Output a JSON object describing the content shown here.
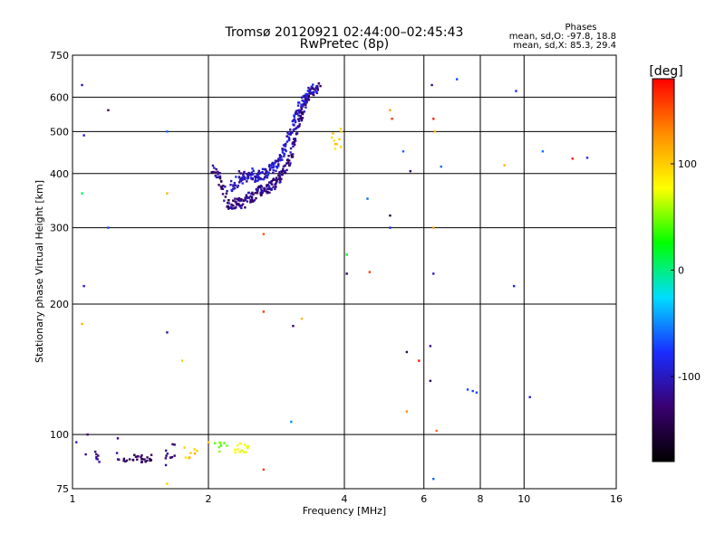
{
  "chart_data": {
    "type": "scatter",
    "title": "Tromsø 20120921 02:44:00–02:45:43",
    "subtitle": "RwPretec (8p)",
    "xlabel": "Frequency [MHz]",
    "ylabel": "Stationary phase Virtual Height [km]",
    "xscale": "log2",
    "yscale": "log",
    "xlim": [
      1,
      16
    ],
    "ylim": [
      75,
      750
    ],
    "xticks": [
      1,
      2,
      4,
      6,
      8,
      10,
      16
    ],
    "xtick_labels": [
      "1",
      "2",
      "4",
      "6",
      "8",
      "10",
      "16"
    ],
    "yticks": [
      75,
      100,
      200,
      300,
      400,
      500,
      600,
      750
    ],
    "ytick_labels": [
      "75",
      "100",
      "200",
      "300",
      "400",
      "500",
      "600",
      "750"
    ],
    "grid": true,
    "phases": {
      "title": "Phases",
      "line_o": "mean, sd,O: -97.8, 18.8",
      "line_x": "mean, sd,X:  85.3, 29.4"
    },
    "colorbar": {
      "label": "[deg]",
      "range": [
        -180,
        180
      ],
      "ticks": [
        100,
        0,
        -100
      ],
      "tick_labels": [
        "100",
        "0",
        "-100"
      ],
      "colors": [
        "#000000",
        "#3a0070",
        "#1a2cff",
        "#00ddff",
        "#00ff00",
        "#ffff00",
        "#ff8c00",
        "#ff0000"
      ]
    },
    "scattered_points": [
      {
        "f": 1.05,
        "h": 640,
        "p": -110
      },
      {
        "f": 1.06,
        "h": 490,
        "p": -100
      },
      {
        "f": 1.2,
        "h": 560,
        "p": -130
      },
      {
        "f": 1.62,
        "h": 500,
        "p": -60
      },
      {
        "f": 1.05,
        "h": 360,
        "p": 10
      },
      {
        "f": 1.62,
        "h": 360,
        "p": 110
      },
      {
        "f": 1.2,
        "h": 300,
        "p": -70
      },
      {
        "f": 1.06,
        "h": 220,
        "p": -100
      },
      {
        "f": 1.05,
        "h": 180,
        "p": 110
      },
      {
        "f": 1.62,
        "h": 172,
        "p": -110
      },
      {
        "f": 1.75,
        "h": 148,
        "p": 100
      },
      {
        "f": 2.65,
        "h": 290,
        "p": 150
      },
      {
        "f": 2.65,
        "h": 192,
        "p": 160
      },
      {
        "f": 3.08,
        "h": 178,
        "p": -130
      },
      {
        "f": 3.22,
        "h": 185,
        "p": 110
      },
      {
        "f": 3.05,
        "h": 107,
        "p": -50
      },
      {
        "f": 2.65,
        "h": 83,
        "p": 160
      },
      {
        "f": 4.05,
        "h": 260,
        "p": 20
      },
      {
        "f": 4.05,
        "h": 235,
        "p": -140
      },
      {
        "f": 4.5,
        "h": 350,
        "p": -60
      },
      {
        "f": 4.55,
        "h": 237,
        "p": 160
      },
      {
        "f": 5.05,
        "h": 560,
        "p": 120
      },
      {
        "f": 5.1,
        "h": 535,
        "p": 160
      },
      {
        "f": 5.4,
        "h": 450,
        "p": -60
      },
      {
        "f": 5.6,
        "h": 405,
        "p": -130
      },
      {
        "f": 5.05,
        "h": 320,
        "p": -150
      },
      {
        "f": 5.05,
        "h": 300,
        "p": -80
      },
      {
        "f": 5.5,
        "h": 155,
        "p": -140
      },
      {
        "f": 5.85,
        "h": 148,
        "p": 170
      },
      {
        "f": 5.5,
        "h": 113,
        "p": 130
      },
      {
        "f": 6.25,
        "h": 640,
        "p": -120
      },
      {
        "f": 6.3,
        "h": 535,
        "p": 170
      },
      {
        "f": 6.35,
        "h": 500,
        "p": 110
      },
      {
        "f": 6.55,
        "h": 415,
        "p": -60
      },
      {
        "f": 6.3,
        "h": 300,
        "p": 120
      },
      {
        "f": 6.3,
        "h": 235,
        "p": -100
      },
      {
        "f": 6.2,
        "h": 160,
        "p": -120
      },
      {
        "f": 6.2,
        "h": 133,
        "p": -140
      },
      {
        "f": 6.4,
        "h": 102,
        "p": 140
      },
      {
        "f": 6.3,
        "h": 79,
        "p": -60
      },
      {
        "f": 7.1,
        "h": 660,
        "p": -70
      },
      {
        "f": 7.5,
        "h": 127,
        "p": -70
      },
      {
        "f": 7.7,
        "h": 126,
        "p": -70
      },
      {
        "f": 7.85,
        "h": 125,
        "p": -70
      },
      {
        "f": 9.05,
        "h": 418,
        "p": 110
      },
      {
        "f": 9.6,
        "h": 620,
        "p": -80
      },
      {
        "f": 9.5,
        "h": 220,
        "p": -90
      },
      {
        "f": 10.3,
        "h": 122,
        "p": -90
      },
      {
        "f": 11.0,
        "h": 450,
        "p": -60
      },
      {
        "f": 12.8,
        "h": 433,
        "p": 170
      },
      {
        "f": 13.8,
        "h": 435,
        "p": -80
      },
      {
        "f": 1.02,
        "h": 96,
        "p": -100
      },
      {
        "f": 1.08,
        "h": 100,
        "p": -130
      },
      {
        "f": 1.07,
        "h": 90,
        "p": -120
      },
      {
        "f": 1.13,
        "h": 88,
        "p": -90
      },
      {
        "f": 1.26,
        "h": 98,
        "p": -130
      },
      {
        "f": 1.61,
        "h": 85,
        "p": -110
      },
      {
        "f": 1.62,
        "h": 77,
        "p": 100
      },
      {
        "f": 2.0,
        "h": 96,
        "p": 100
      }
    ],
    "clusters": [
      {
        "f_range": [
          1.12,
          1.16
        ],
        "h_range": [
          86,
          92
        ],
        "p": -120,
        "n": 6
      },
      {
        "f_range": [
          1.25,
          1.34
        ],
        "h_range": [
          85,
          91
        ],
        "p": -130,
        "n": 8
      },
      {
        "f_range": [
          1.36,
          1.5
        ],
        "h_range": [
          86,
          90
        ],
        "p": -140,
        "n": 22
      },
      {
        "f_range": [
          1.6,
          1.7
        ],
        "h_range": [
          88,
          96
        ],
        "p": -120,
        "n": 10
      },
      {
        "f_range": [
          1.77,
          1.9
        ],
        "h_range": [
          88,
          95
        ],
        "p": 100,
        "n": 8
      },
      {
        "f_range": [
          2.05,
          2.2
        ],
        "h_range": [
          91,
          96
        ],
        "p": 40,
        "n": 8
      },
      {
        "f_range": [
          2.28,
          2.45
        ],
        "h_range": [
          90,
          96
        ],
        "p": 80,
        "n": 14
      },
      {
        "f_range": [
          3.75,
          3.95
        ],
        "h_range": [
          455,
          510
        ],
        "p": 100,
        "n": 10
      }
    ],
    "trace_o": {
      "phase": -120,
      "points": [
        [
          2.05,
          410
        ],
        [
          2.1,
          395
        ],
        [
          2.15,
          375
        ],
        [
          2.2,
          345
        ],
        [
          2.25,
          335
        ],
        [
          2.3,
          345
        ],
        [
          2.35,
          340
        ],
        [
          2.4,
          345
        ],
        [
          2.45,
          355
        ],
        [
          2.5,
          350
        ],
        [
          2.55,
          360
        ],
        [
          2.6,
          365
        ],
        [
          2.65,
          370
        ],
        [
          2.7,
          370
        ],
        [
          2.75,
          375
        ],
        [
          2.8,
          380
        ],
        [
          2.85,
          390
        ],
        [
          2.9,
          395
        ],
        [
          2.95,
          405
        ],
        [
          3.0,
          420
        ],
        [
          3.05,
          445
        ],
        [
          3.1,
          470
        ],
        [
          3.15,
          510
        ],
        [
          3.2,
          540
        ],
        [
          3.25,
          560
        ],
        [
          3.3,
          590
        ],
        [
          3.35,
          610
        ],
        [
          3.45,
          625
        ],
        [
          3.55,
          635
        ]
      ]
    },
    "trace_x": {
      "phase": -100,
      "points": [
        [
          2.25,
          375
        ],
        [
          2.3,
          380
        ],
        [
          2.35,
          395
        ],
        [
          2.4,
          390
        ],
        [
          2.45,
          395
        ],
        [
          2.5,
          400
        ],
        [
          2.55,
          390
        ],
        [
          2.6,
          395
        ],
        [
          2.65,
          400
        ],
        [
          2.7,
          405
        ],
        [
          2.75,
          410
        ],
        [
          2.8,
          415
        ],
        [
          2.85,
          425
        ],
        [
          2.9,
          440
        ],
        [
          2.95,
          455
        ],
        [
          3.0,
          480
        ],
        [
          3.05,
          505
        ],
        [
          3.1,
          530
        ],
        [
          3.15,
          555
        ],
        [
          3.2,
          575
        ],
        [
          3.25,
          595
        ],
        [
          3.3,
          610
        ],
        [
          3.4,
          620
        ],
        [
          3.5,
          640
        ]
      ]
    }
  }
}
